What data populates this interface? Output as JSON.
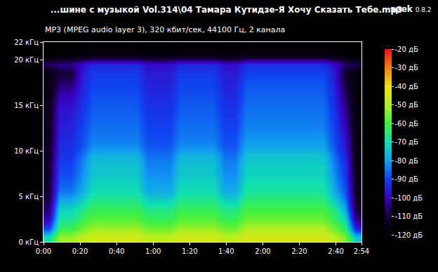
{
  "chart_data": {
    "type": "heatmap",
    "title": "...шине с музыкой Vol.314\\04 Тамара Кутидзе-Я Хочу Сказать Тебе.mp3",
    "subtitle": "MP3 (MPEG audio layer 3), 320 кбит/сек, 44100 Гц, 2 канала",
    "app": "spek",
    "version": "0.8.2",
    "xlim": [
      0,
      174
    ],
    "xticks": [
      {
        "value": 0,
        "label": "0:00"
      },
      {
        "value": 20,
        "label": "0:20"
      },
      {
        "value": 40,
        "label": "0:40"
      },
      {
        "value": 60,
        "label": "1:00"
      },
      {
        "value": 80,
        "label": "1:20"
      },
      {
        "value": 100,
        "label": "1:40"
      },
      {
        "value": 120,
        "label": "2:00"
      },
      {
        "value": 140,
        "label": "2:20"
      },
      {
        "value": 160,
        "label": "2:40"
      },
      {
        "value": 174,
        "label": "2:54"
      }
    ],
    "ylim": [
      0,
      22
    ],
    "yticks": [
      {
        "value": 0,
        "label": "0 кГц"
      },
      {
        "value": 5,
        "label": "5 кГц"
      },
      {
        "value": 10,
        "label": "10 кГц"
      },
      {
        "value": 15,
        "label": "15 кГц"
      },
      {
        "value": 20,
        "label": "20 кГц"
      },
      {
        "value": 22,
        "label": "22 кГц"
      }
    ],
    "grid": false,
    "x": [
      3,
      9,
      15,
      21,
      27,
      33,
      39,
      45,
      51,
      57,
      63,
      69,
      75,
      81,
      87,
      93,
      99,
      105,
      111,
      117,
      123,
      129,
      135,
      141,
      147,
      153,
      159,
      165,
      171
    ],
    "y": [
      0.5,
      1.5,
      2.5,
      3.5,
      4.5,
      5.5,
      6.5,
      7.5,
      8.5,
      9.5,
      10.5,
      11.5,
      12.5,
      13.5,
      14.5,
      15.5,
      16.5,
      17.5,
      18.5,
      19.5,
      20.5,
      21.5
    ],
    "cells_by_column": [
      [
        -70,
        -90,
        -100,
        -105,
        -108,
        -110,
        -110,
        -111,
        -111,
        -112,
        -112,
        -113,
        -113,
        -113,
        -114,
        -114,
        -115,
        -115,
        -116,
        -106,
        -120,
        -120
      ],
      [
        -52,
        -62,
        -68,
        -72,
        -78,
        -84,
        -87,
        -89,
        -90,
        -92,
        -93,
        -94,
        -95,
        -96,
        -97,
        -99,
        -102,
        -106,
        -110,
        -104,
        -118,
        -120
      ],
      [
        -52,
        -62,
        -68,
        -72,
        -78,
        -84,
        -87,
        -89,
        -90,
        -92,
        -93,
        -94,
        -95,
        -96,
        -97,
        -99,
        -102,
        -106,
        -110,
        -104,
        -118,
        -120
      ],
      [
        -48,
        -56,
        -62,
        -66,
        -72,
        -78,
        -80,
        -82,
        -83,
        -85,
        -88,
        -89,
        -90,
        -91,
        -92,
        -93,
        -94,
        -95,
        -96,
        -98,
        -117,
        -119
      ],
      [
        -45,
        -52,
        -58,
        -62,
        -66,
        -70,
        -72,
        -74,
        -75,
        -77,
        -82,
        -84,
        -85,
        -86,
        -87,
        -88,
        -89,
        -90,
        -91,
        -94,
        -116,
        -119
      ],
      [
        -45,
        -52,
        -58,
        -62,
        -66,
        -70,
        -72,
        -74,
        -75,
        -77,
        -82,
        -84,
        -85,
        -86,
        -87,
        -88,
        -89,
        -90,
        -91,
        -94,
        -116,
        -119
      ],
      [
        -45,
        -52,
        -58,
        -62,
        -66,
        -70,
        -72,
        -74,
        -75,
        -77,
        -82,
        -84,
        -85,
        -86,
        -87,
        -88,
        -89,
        -90,
        -91,
        -94,
        -116,
        -119
      ],
      [
        -45,
        -52,
        -58,
        -62,
        -66,
        -70,
        -72,
        -74,
        -75,
        -77,
        -82,
        -84,
        -85,
        -86,
        -87,
        -88,
        -89,
        -90,
        -91,
        -94,
        -116,
        -119
      ],
      [
        -45,
        -52,
        -58,
        -62,
        -66,
        -70,
        -72,
        -74,
        -75,
        -77,
        -82,
        -84,
        -85,
        -86,
        -87,
        -88,
        -89,
        -90,
        -91,
        -94,
        -116,
        -119
      ],
      [
        -48,
        -56,
        -62,
        -66,
        -72,
        -78,
        -80,
        -82,
        -83,
        -85,
        -88,
        -89,
        -90,
        -91,
        -92,
        -93,
        -94,
        -95,
        -96,
        -98,
        -117,
        -119
      ],
      [
        -48,
        -56,
        -62,
        -66,
        -72,
        -78,
        -80,
        -82,
        -83,
        -85,
        -88,
        -89,
        -90,
        -91,
        -92,
        -93,
        -94,
        -95,
        -96,
        -98,
        -117,
        -119
      ],
      [
        -48,
        -56,
        -62,
        -66,
        -72,
        -78,
        -80,
        -82,
        -83,
        -85,
        -88,
        -89,
        -90,
        -91,
        -92,
        -93,
        -94,
        -95,
        -96,
        -98,
        -117,
        -119
      ],
      [
        -45,
        -52,
        -58,
        -62,
        -66,
        -70,
        -72,
        -74,
        -75,
        -77,
        -82,
        -84,
        -85,
        -86,
        -87,
        -88,
        -89,
        -90,
        -91,
        -94,
        -116,
        -119
      ],
      [
        -45,
        -52,
        -58,
        -62,
        -66,
        -70,
        -72,
        -74,
        -75,
        -77,
        -82,
        -84,
        -85,
        -86,
        -87,
        -88,
        -89,
        -90,
        -91,
        -94,
        -116,
        -119
      ],
      [
        -45,
        -52,
        -58,
        -62,
        -66,
        -70,
        -72,
        -74,
        -75,
        -77,
        -82,
        -84,
        -85,
        -86,
        -87,
        -88,
        -89,
        -90,
        -91,
        -94,
        -116,
        -119
      ],
      [
        -45,
        -52,
        -58,
        -62,
        -66,
        -70,
        -72,
        -74,
        -75,
        -77,
        -82,
        -84,
        -85,
        -86,
        -87,
        -88,
        -89,
        -90,
        -91,
        -94,
        -116,
        -119
      ],
      [
        -48,
        -56,
        -62,
        -66,
        -72,
        -78,
        -80,
        -82,
        -83,
        -85,
        -88,
        -89,
        -90,
        -91,
        -92,
        -93,
        -94,
        -95,
        -96,
        -98,
        -117,
        -119
      ],
      [
        -48,
        -56,
        -62,
        -66,
        -72,
        -78,
        -80,
        -82,
        -83,
        -85,
        -88,
        -89,
        -90,
        -91,
        -92,
        -93,
        -94,
        -95,
        -96,
        -98,
        -117,
        -119
      ],
      [
        -44,
        -50,
        -56,
        -60,
        -64,
        -68,
        -70,
        -72,
        -73,
        -75,
        -79,
        -81,
        -83,
        -84,
        -85,
        -86,
        -87,
        -88,
        -90,
        -93,
        -116,
        -119
      ],
      [
        -44,
        -50,
        -56,
        -60,
        -64,
        -68,
        -70,
        -72,
        -73,
        -75,
        -79,
        -81,
        -83,
        -84,
        -85,
        -86,
        -87,
        -88,
        -90,
        -93,
        -116,
        -119
      ],
      [
        -44,
        -50,
        -56,
        -60,
        -64,
        -68,
        -70,
        -72,
        -73,
        -75,
        -79,
        -81,
        -83,
        -84,
        -85,
        -86,
        -87,
        -88,
        -90,
        -93,
        -116,
        -119
      ],
      [
        -44,
        -50,
        -56,
        -60,
        -64,
        -68,
        -70,
        -72,
        -73,
        -75,
        -79,
        -81,
        -83,
        -84,
        -85,
        -86,
        -87,
        -88,
        -90,
        -93,
        -116,
        -119
      ],
      [
        -44,
        -50,
        -56,
        -60,
        -64,
        -68,
        -70,
        -72,
        -73,
        -75,
        -79,
        -81,
        -83,
        -84,
        -85,
        -86,
        -87,
        -88,
        -90,
        -93,
        -116,
        -119
      ],
      [
        -44,
        -50,
        -56,
        -60,
        -64,
        -68,
        -70,
        -72,
        -73,
        -75,
        -79,
        -81,
        -83,
        -84,
        -85,
        -86,
        -87,
        -88,
        -90,
        -93,
        -116,
        -119
      ],
      [
        -44,
        -50,
        -56,
        -60,
        -64,
        -68,
        -70,
        -72,
        -73,
        -75,
        -79,
        -81,
        -83,
        -84,
        -85,
        -86,
        -87,
        -88,
        -90,
        -93,
        -116,
        -119
      ],
      [
        -44,
        -50,
        -56,
        -60,
        -64,
        -68,
        -70,
        -72,
        -73,
        -75,
        -79,
        -81,
        -83,
        -84,
        -85,
        -86,
        -87,
        -88,
        -90,
        -93,
        -116,
        -119
      ],
      [
        -48,
        -56,
        -62,
        -66,
        -72,
        -78,
        -80,
        -82,
        -83,
        -85,
        -88,
        -89,
        -90,
        -91,
        -92,
        -93,
        -94,
        -95,
        -96,
        -98,
        -117,
        -119
      ],
      [
        -55,
        -65,
        -72,
        -78,
        -84,
        -88,
        -90,
        -92,
        -93,
        -95,
        -97,
        -98,
        -100,
        -102,
        -104,
        -106,
        -108,
        -110,
        -112,
        -106,
        -119,
        -120
      ],
      [
        -75,
        -95,
        -105,
        -110,
        -112,
        -113,
        -114,
        -114,
        -115,
        -115,
        -116,
        -116,
        -116,
        -117,
        -117,
        -117,
        -118,
        -118,
        -118,
        -108,
        -120,
        -120
      ]
    ],
    "colorbar": {
      "range": [
        -120,
        -20
      ],
      "ticks": [
        {
          "value": -20,
          "label": "-20 дБ"
        },
        {
          "value": -30,
          "label": "-30 дБ"
        },
        {
          "value": -40,
          "label": "-40 дБ"
        },
        {
          "value": -50,
          "label": "-50 дБ"
        },
        {
          "value": -60,
          "label": "-60 дБ"
        },
        {
          "value": -70,
          "label": "-70 дБ"
        },
        {
          "value": -80,
          "label": "-80 дБ"
        },
        {
          "value": -90,
          "label": "-90 дБ"
        },
        {
          "value": -100,
          "label": "-100 дБ"
        },
        {
          "value": -110,
          "label": "-110 дБ"
        },
        {
          "value": -120,
          "label": "-120 дБ"
        }
      ]
    }
  }
}
